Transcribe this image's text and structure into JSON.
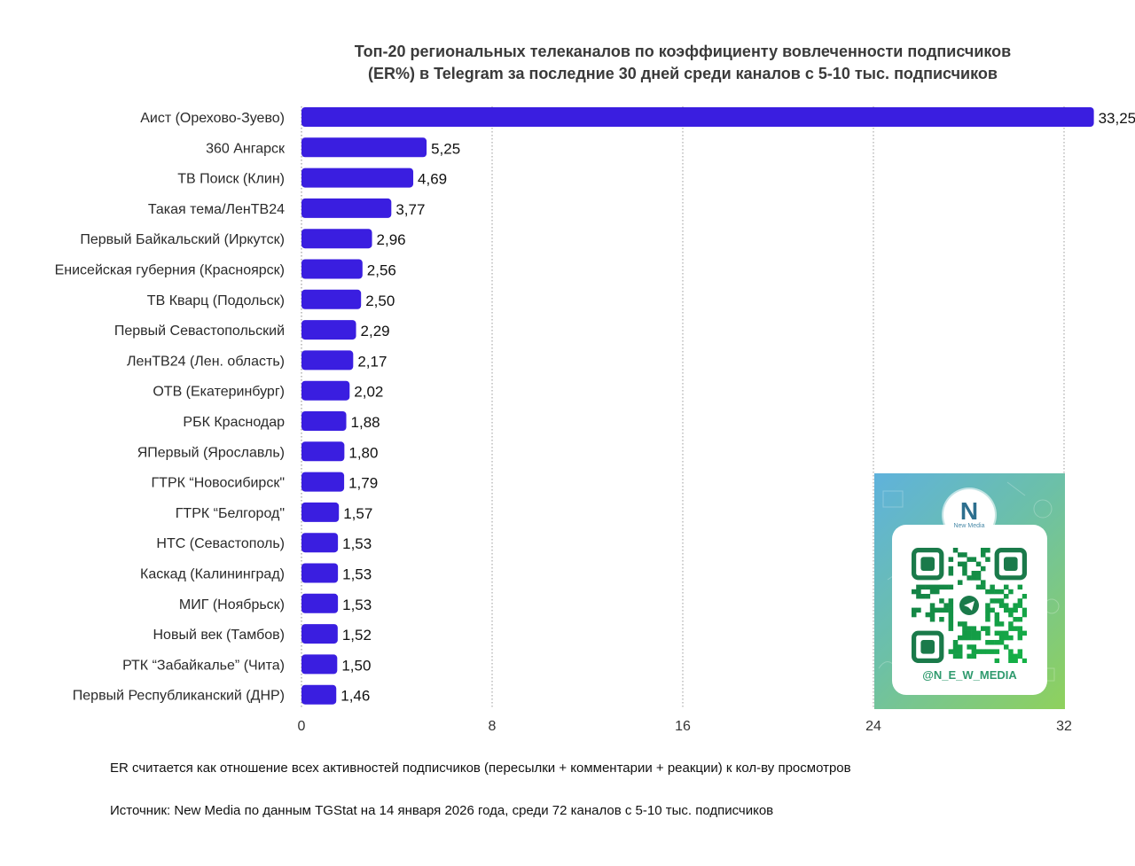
{
  "title_lines": [
    "Топ-20 региональных телеканалов по коэффициенту вовлеченности подписчиков",
    "(ER%) в Telegram за последние 30 дней среди каналов с 5-10 тыс. подписчиков"
  ],
  "chart_data": {
    "type": "bar",
    "orientation": "horizontal",
    "title": "Топ-20 региональных телеканалов по коэффициенту вовлеченности подписчиков (ER%) в Telegram за последние 30 дней среди каналов с 5-10 тыс. подписчиков",
    "categories": [
      "Аист (Орехово-Зуево)",
      "360 Ангарск",
      "ТВ Поиск (Клин)",
      "Такая тема/ЛенТВ24",
      "Первый Байкальский (Иркутск)",
      "Енисейская губерния (Красноярск)",
      "ТВ Кварц (Подольск)",
      "Первый Севастопольский",
      "ЛенТВ24 (Лен. область)",
      "ОТВ (Екатеринбург)",
      "РБК Краснодар",
      "ЯПервый (Ярославль)",
      "ГТРК “Новосибирск\"",
      "ГТРК “Белгород\"",
      "НТС (Севастополь)",
      "Каскад (Калининград)",
      "МИГ (Ноябрьск)",
      "Новый век (Тамбов)",
      "РТК “Забайкалье” (Чита)",
      "Первый Республиканский (ДНР)"
    ],
    "values": [
      33.25,
      5.25,
      4.69,
      3.77,
      2.96,
      2.56,
      2.5,
      2.29,
      2.17,
      2.02,
      1.88,
      1.8,
      1.79,
      1.57,
      1.53,
      1.53,
      1.53,
      1.52,
      1.5,
      1.46
    ],
    "value_labels": [
      "33,25",
      "5,25",
      "4,69",
      "3,77",
      "2,96",
      "2,56",
      "2,50",
      "2,29",
      "2,17",
      "2,02",
      "1,88",
      "1,80",
      "1,79",
      "1,57",
      "1,53",
      "1,53",
      "1,53",
      "1,52",
      "1,50",
      "1,46"
    ],
    "xlim": [
      0,
      32
    ],
    "xticks": [
      0,
      8,
      16,
      24,
      32
    ],
    "grid": "vertical-dotted",
    "bar_color": "#3a1ee0",
    "xlabel": "",
    "ylabel": ""
  },
  "notes": {
    "definition": "ER считается как отношение всех активностей подписчиков (пересылки + комментарии + реакции) к кол-ву просмотров",
    "source": "Источник: New Media по данным TGStat на 14 января 2026 года, среди 72 каналов с 5-10 тыс. подписчиков"
  },
  "qr": {
    "logo_mark": "N",
    "logo_text": "New Media",
    "handle": "@N_E_W_MEDIA",
    "icon": "telegram-qr-code-icon"
  }
}
